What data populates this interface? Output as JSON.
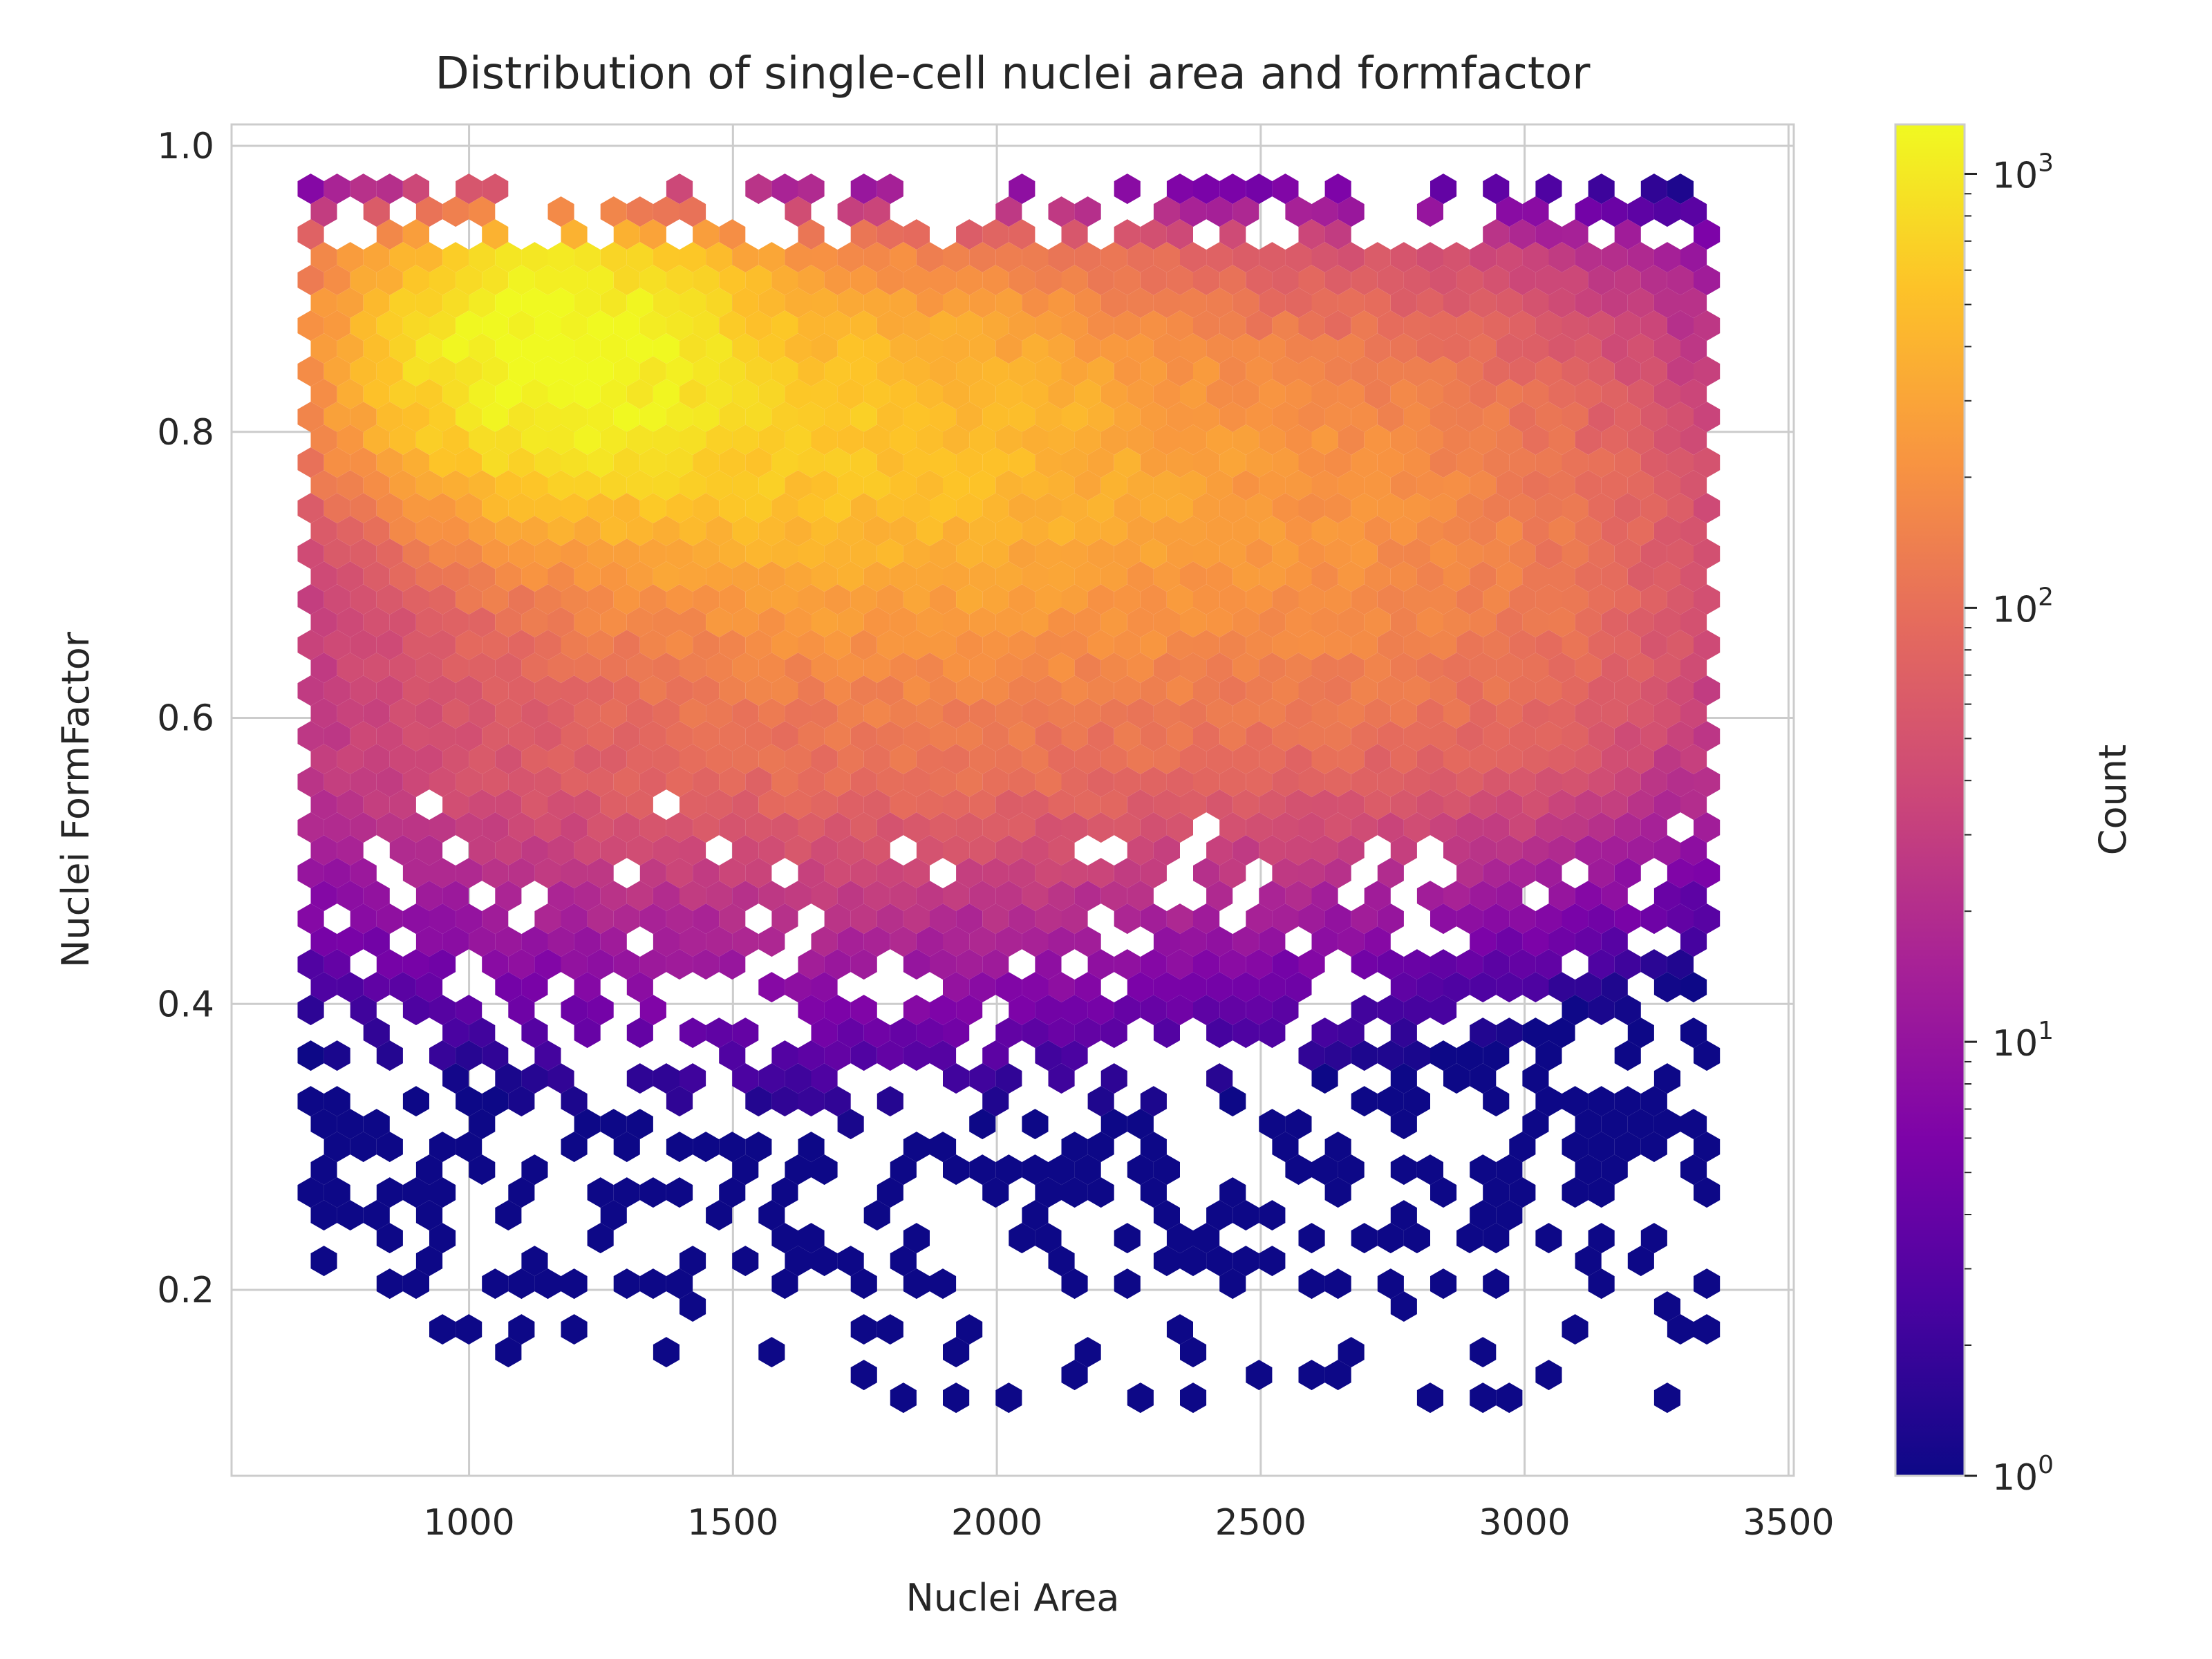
{
  "chart_data": {
    "type": "heatmap",
    "subtype": "hexbin",
    "title": "Distribution of single-cell nuclei area and formfactor",
    "xlabel": "Nuclei Area",
    "ylabel": "Nuclei FormFactor",
    "xlim": [
      550,
      3510
    ],
    "ylim": [
      0.07,
      1.015
    ],
    "x_ticks": [
      1000,
      1500,
      2000,
      2500,
      3000,
      3500
    ],
    "x_tick_labels": [
      "1000",
      "1500",
      "2000",
      "2500",
      "3000",
      "3500"
    ],
    "y_ticks": [
      0.2,
      0.4,
      0.6,
      0.8,
      1.0
    ],
    "y_tick_labels": [
      "0.2",
      "0.4",
      "0.6",
      "0.8",
      "1.0"
    ],
    "grid": true,
    "colormap": "plasma",
    "colorbar": {
      "label": "Count",
      "scale": "log",
      "range": [
        1,
        1300
      ],
      "ticks": [
        1,
        10,
        100,
        1000
      ],
      "tick_labels": [
        {
          "base": "10",
          "exp": "0"
        },
        {
          "base": "10",
          "exp": "1"
        },
        {
          "base": "10",
          "exp": "2"
        },
        {
          "base": "10",
          "exp": "3"
        }
      ]
    },
    "density_summary": {
      "peak": {
        "x": 1150,
        "y": 0.86,
        "count": 1300
      },
      "x_range": [
        700,
        3350
      ],
      "y_range": [
        0.11,
        0.97
      ]
    }
  }
}
